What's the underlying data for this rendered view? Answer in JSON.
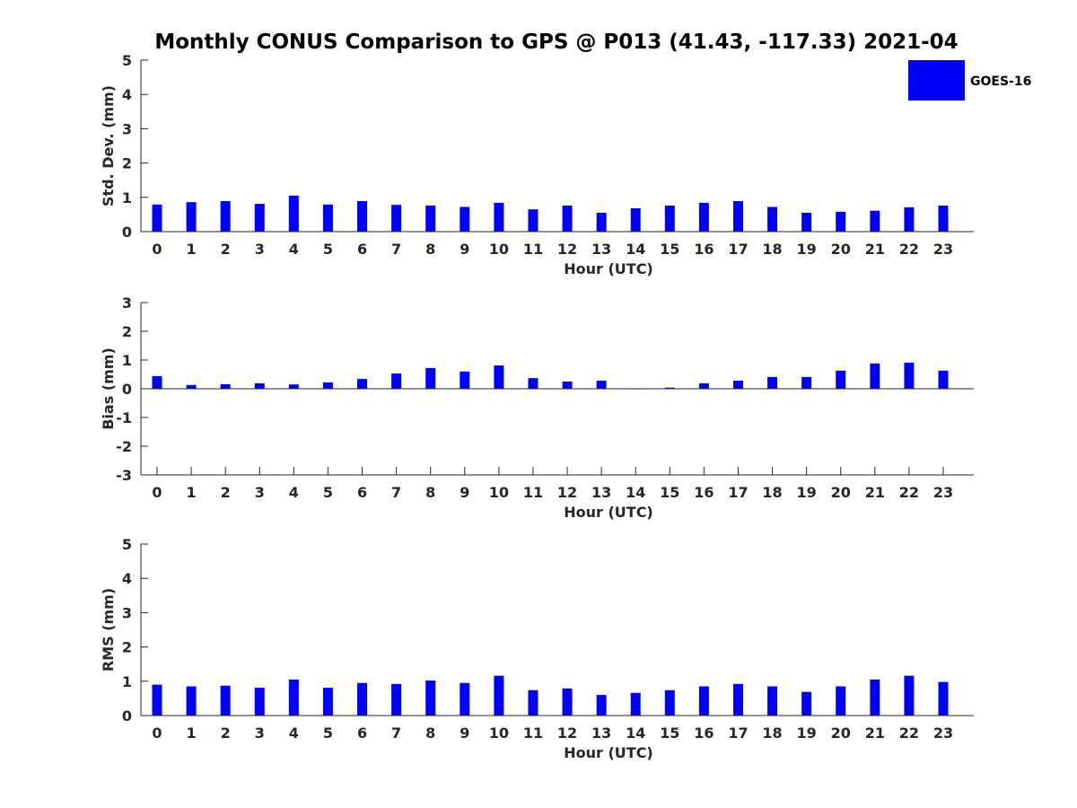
{
  "title": "Monthly CONUS Comparison to GPS @ P013 (41.43, -117.33) 2021-04",
  "colors": {
    "bar": "#0000ff",
    "axis": "#262626",
    "background": "#ffffff"
  },
  "legend": {
    "label": "GOES-16",
    "placement": "top-right"
  },
  "chart_data": [
    {
      "type": "bar",
      "title": "",
      "xlabel": "Hour (UTC)",
      "ylabel": "Std. Dev. (mm)",
      "ylim": [
        0,
        5
      ],
      "yticks": [
        0,
        1,
        2,
        3,
        4,
        5
      ],
      "categories": [
        "0",
        "1",
        "2",
        "3",
        "4",
        "5",
        "6",
        "7",
        "8",
        "9",
        "10",
        "11",
        "12",
        "13",
        "14",
        "15",
        "16",
        "17",
        "18",
        "19",
        "20",
        "21",
        "22",
        "23"
      ],
      "series": [
        {
          "name": "GOES-16",
          "values": [
            0.79,
            0.86,
            0.89,
            0.81,
            1.05,
            0.79,
            0.89,
            0.78,
            0.76,
            0.72,
            0.84,
            0.65,
            0.76,
            0.55,
            0.68,
            0.76,
            0.84,
            0.89,
            0.72,
            0.55,
            0.58,
            0.61,
            0.71,
            0.76
          ]
        }
      ]
    },
    {
      "type": "bar",
      "title": "",
      "xlabel": "Hour (UTC)",
      "ylabel": "Bias (mm)",
      "ylim": [
        -3,
        3
      ],
      "yticks": [
        -3,
        -2,
        -1,
        0,
        1,
        2,
        3
      ],
      "categories": [
        "0",
        "1",
        "2",
        "3",
        "4",
        "5",
        "6",
        "7",
        "8",
        "9",
        "10",
        "11",
        "12",
        "13",
        "14",
        "15",
        "16",
        "17",
        "18",
        "19",
        "20",
        "21",
        "22",
        "23"
      ],
      "series": [
        {
          "name": "GOES-16",
          "values": [
            0.44,
            0.13,
            0.16,
            0.19,
            0.15,
            0.22,
            0.34,
            0.53,
            0.72,
            0.6,
            0.81,
            0.37,
            0.25,
            0.28,
            0.0,
            0.04,
            0.19,
            0.28,
            0.41,
            0.41,
            0.63,
            0.88,
            0.91,
            0.63
          ]
        }
      ]
    },
    {
      "type": "bar",
      "title": "",
      "xlabel": "Hour (UTC)",
      "ylabel": "RMS (mm)",
      "ylim": [
        0,
        5
      ],
      "yticks": [
        0,
        1,
        2,
        3,
        4,
        5
      ],
      "categories": [
        "0",
        "1",
        "2",
        "3",
        "4",
        "5",
        "6",
        "7",
        "8",
        "9",
        "10",
        "11",
        "12",
        "13",
        "14",
        "15",
        "16",
        "17",
        "18",
        "19",
        "20",
        "21",
        "22",
        "23"
      ],
      "series": [
        {
          "name": "GOES-16",
          "values": [
            0.9,
            0.85,
            0.87,
            0.81,
            1.05,
            0.81,
            0.95,
            0.92,
            1.02,
            0.95,
            1.16,
            0.74,
            0.79,
            0.6,
            0.66,
            0.74,
            0.85,
            0.92,
            0.85,
            0.69,
            0.85,
            1.05,
            1.16,
            0.98
          ]
        }
      ]
    }
  ]
}
